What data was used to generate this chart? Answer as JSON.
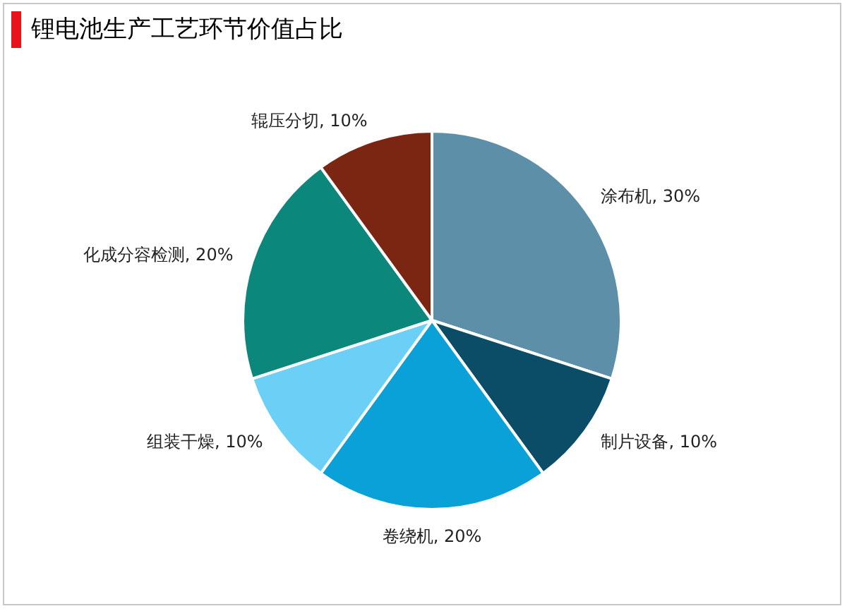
{
  "chart_data": {
    "type": "pie",
    "title": "锂电池生产工艺环节价值占比",
    "categories": [
      "涂布机",
      "制片设备",
      "卷绕机",
      "组装干燥",
      "化成分容检测",
      "辊压分切"
    ],
    "values": [
      30,
      10,
      20,
      10,
      20,
      10
    ],
    "value_labels": [
      "30%",
      "10%",
      "20%",
      "10%",
      "20%",
      "10%"
    ],
    "colors": [
      "#5d90a8",
      "#0b4d66",
      "#0aa0d8",
      "#6ccff5",
      "#0b877b",
      "#7b2613"
    ],
    "legend": false
  }
}
